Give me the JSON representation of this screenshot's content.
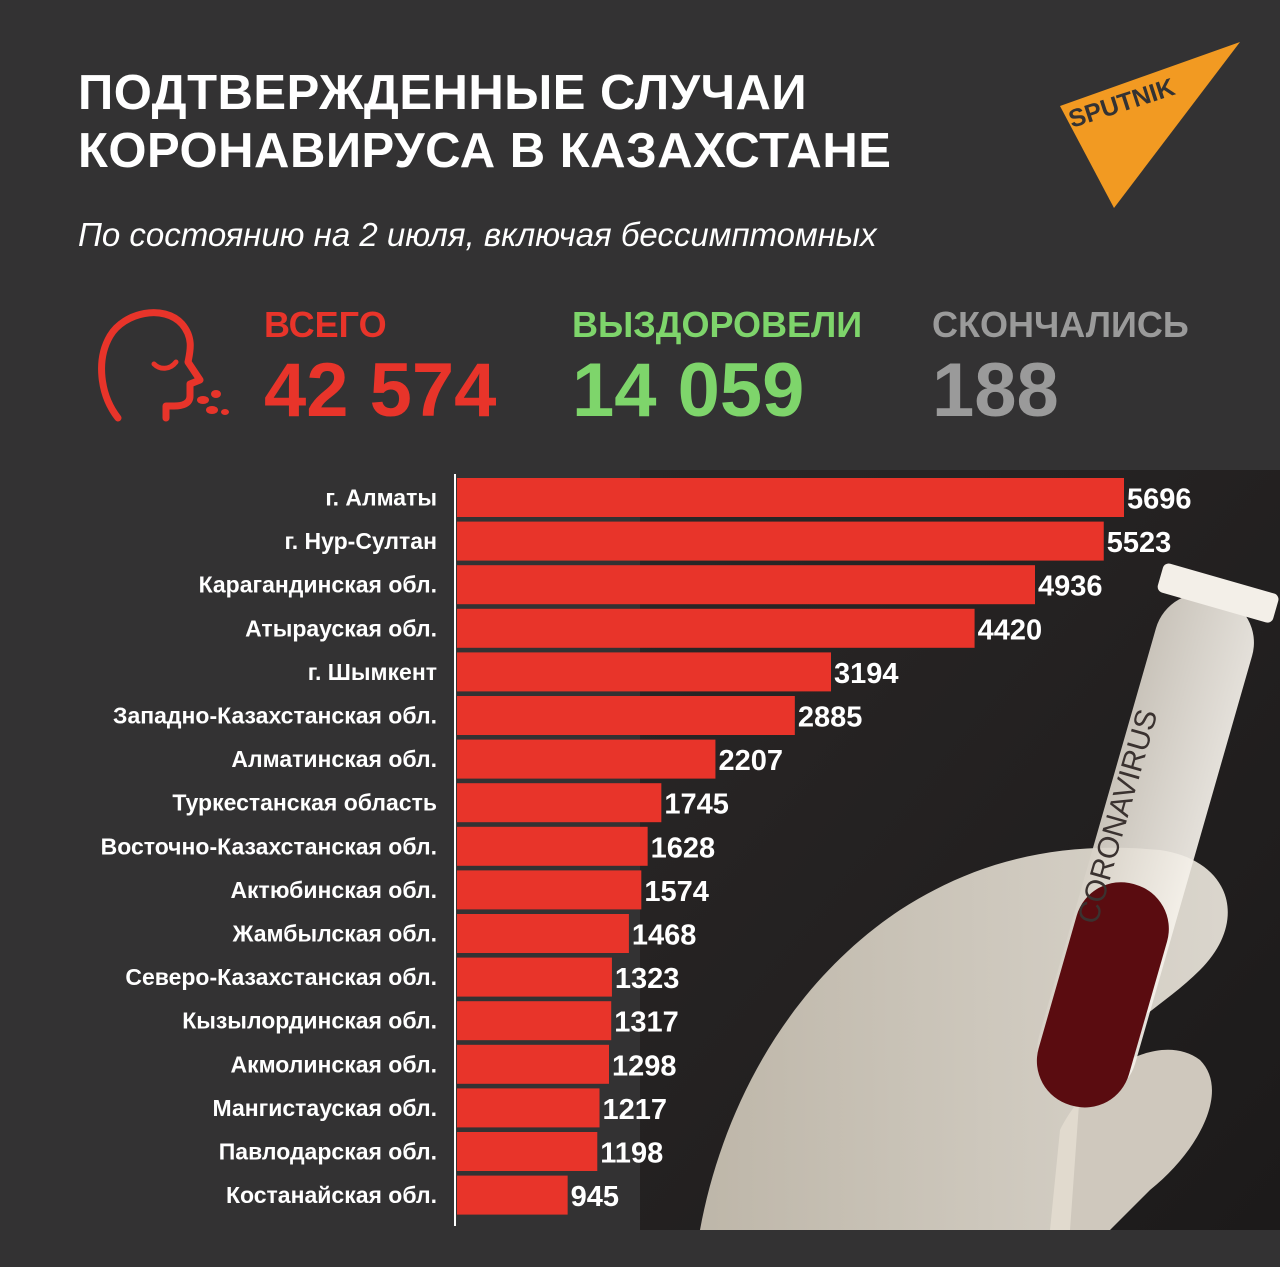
{
  "header": {
    "title_line1": "ПОДТВЕРЖДЕННЫЕ СЛУЧАИ",
    "title_line2": "КОРОНАВИРУСА В КАЗАХСТАНЕ",
    "subtitle": "По состоянию на 2 июля, включая бессимптомных",
    "logo_text": "SPUTNIK"
  },
  "stats": {
    "total_label": "ВСЕГО",
    "total_value": "42 574",
    "recovered_label": "ВЫЗДОРОВЕЛИ",
    "recovered_value": "14 059",
    "deaths_label": "СКОНЧАЛИСЬ",
    "deaths_value": "188"
  },
  "colors": {
    "background": "#333233",
    "bar": "#e8342a",
    "total": "#e8342a",
    "recovered": "#7ed56b",
    "deaths": "#9a9a9a"
  },
  "icons": [
    "coughing-head-icon",
    "sputnik-logo-icon"
  ],
  "photo_label": "CORONAVIRUS",
  "chart_data": {
    "type": "bar",
    "orientation": "horizontal",
    "categories": [
      "г. Алматы",
      "г. Нур-Султан",
      "Карагандинская обл.",
      "Атырауская обл.",
      "г. Шымкент",
      "Западно-Казахстанская обл.",
      "Алматинская обл.",
      "Туркестанская область",
      "Восточно-Казахстанская обл.",
      "Актюбинская обл.",
      "Жамбылская обл.",
      "Северо-Казахстанская обл.",
      "Кызылординская обл.",
      "Акмолинская обл.",
      "Мангистауская обл.",
      "Павлодарская обл.",
      "Костанайская обл."
    ],
    "values": [
      5696,
      5523,
      4936,
      4420,
      3194,
      2885,
      2207,
      1745,
      1628,
      1574,
      1468,
      1323,
      1317,
      1298,
      1217,
      1198,
      945
    ],
    "title": "",
    "xlabel": "",
    "ylabel": "",
    "xlim": [
      0,
      5696
    ],
    "grid": false,
    "legend": "none"
  }
}
